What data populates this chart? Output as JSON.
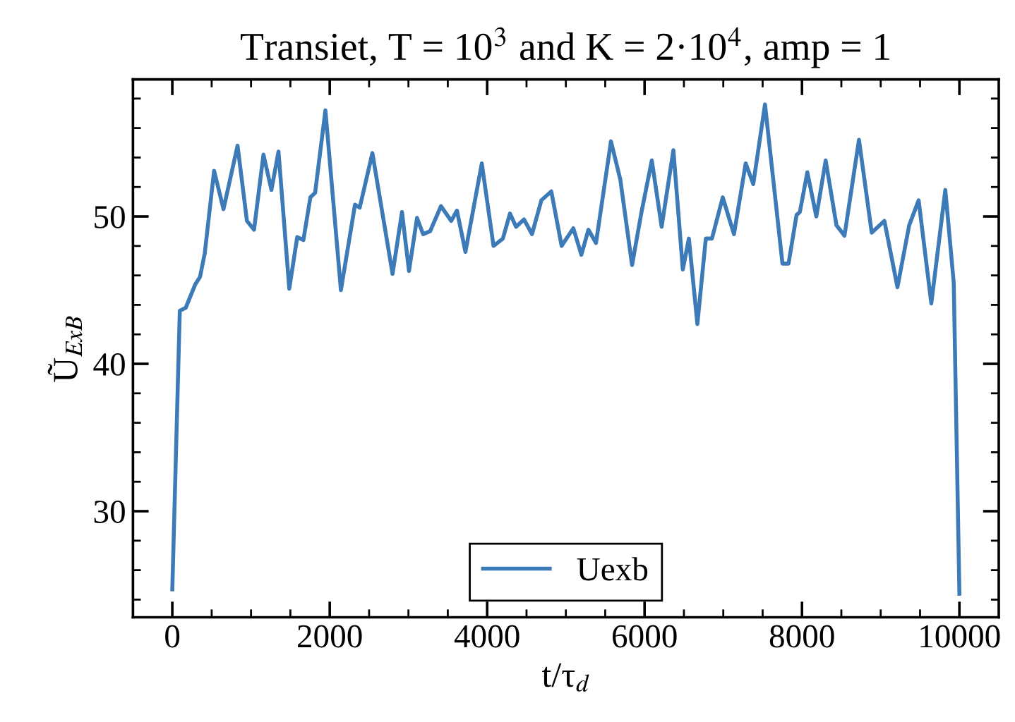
{
  "chart_data": {
    "type": "line",
    "title": "Transiet, T = 10$^{3}$ and K = 2·10$^{4}$, amp = 1",
    "xlabel": "t/τ$_{d}$",
    "ylabel": "Ũ$_{ExB}$",
    "x": [
      0,
      95,
      170,
      292,
      352,
      412,
      531,
      650,
      829,
      948,
      1038,
      1158,
      1259,
      1349,
      1486,
      1587,
      1665,
      1754,
      1814,
      1945,
      2142,
      2321,
      2381,
      2542,
      2798,
      2918,
      3007,
      3109,
      3186,
      3276,
      3413,
      3544,
      3616,
      3724,
      3932,
      4081,
      4200,
      4290,
      4367,
      4468,
      4570,
      4689,
      4815,
      4946,
      5095,
      5197,
      5287,
      5383,
      5573,
      5692,
      5841,
      5961,
      6092,
      6217,
      6366,
      6486,
      6563,
      6671,
      6778,
      6856,
      6993,
      7136,
      7285,
      7381,
      7530,
      7752,
      7829,
      7931,
      7973,
      8068,
      8182,
      8301,
      8438,
      8540,
      8724,
      8886,
      9047,
      9213,
      9362,
      9482,
      9643,
      9821,
      9928,
      10000
    ],
    "series": [
      {
        "name": "Uexb",
        "color": "#3d7ab8",
        "values": [
          24.7,
          43.6,
          43.8,
          45.4,
          45.9,
          47.5,
          53.1,
          50.5,
          54.8,
          49.7,
          49.1,
          54.2,
          51.8,
          54.4,
          45.1,
          48.6,
          48.4,
          51.3,
          51.6,
          57.2,
          45.0,
          50.8,
          50.6,
          54.3,
          46.1,
          50.3,
          46.3,
          49.9,
          48.8,
          49.0,
          50.7,
          49.7,
          50.4,
          47.6,
          53.6,
          48.0,
          48.5,
          50.2,
          49.3,
          49.8,
          48.8,
          51.1,
          51.7,
          48.0,
          49.2,
          47.4,
          49.1,
          48.2,
          55.1,
          52.5,
          46.7,
          50.3,
          53.8,
          49.3,
          54.5,
          46.4,
          48.5,
          42.7,
          48.5,
          48.5,
          51.3,
          48.8,
          53.6,
          52.2,
          57.6,
          46.8,
          46.8,
          50.1,
          50.3,
          53.0,
          50.0,
          53.8,
          49.4,
          48.7,
          55.2,
          48.9,
          49.7,
          45.2,
          49.4,
          51.1,
          44.1,
          51.8,
          45.5,
          24.4
        ]
      }
    ],
    "xlim": [
      -500,
      10500
    ],
    "ylim": [
      22.8,
      59.3
    ],
    "xticks": [
      0,
      {
        "value": 500,
        "label": null
      },
      {
        "value": 1000,
        "label": null
      },
      {
        "value": 1500,
        "label": null
      },
      2000,
      {
        "value": 2500,
        "label": null
      },
      {
        "value": 3000,
        "label": null
      },
      {
        "value": 3500,
        "label": null
      },
      4000,
      {
        "value": 4500,
        "label": null
      },
      {
        "value": 5000,
        "label": null
      },
      {
        "value": 5500,
        "label": null
      },
      6000,
      {
        "value": 6500,
        "label": null
      },
      {
        "value": 7000,
        "label": null
      },
      {
        "value": 7500,
        "label": null
      },
      8000,
      {
        "value": 8500,
        "label": null
      },
      {
        "value": 9000,
        "label": null
      },
      {
        "value": 9500,
        "label": null
      },
      10000
    ],
    "yticks": [
      {
        "value": 24,
        "label": null
      },
      {
        "value": 26,
        "label": null
      },
      {
        "value": 28,
        "label": null
      },
      30,
      {
        "value": 32,
        "label": null
      },
      {
        "value": 34,
        "label": null
      },
      {
        "value": 36,
        "label": null
      },
      {
        "value": 38,
        "label": null
      },
      40,
      {
        "value": 42,
        "label": null
      },
      {
        "value": 44,
        "label": null
      },
      {
        "value": 46,
        "label": null
      },
      {
        "value": 48,
        "label": null
      },
      50,
      {
        "value": 52,
        "label": null
      },
      {
        "value": 54,
        "label": null
      },
      {
        "value": 56,
        "label": null
      },
      {
        "value": 58,
        "label": null
      }
    ],
    "grid": false,
    "legend": "bottom",
    "marker": "none",
    "line_style": "solid"
  }
}
